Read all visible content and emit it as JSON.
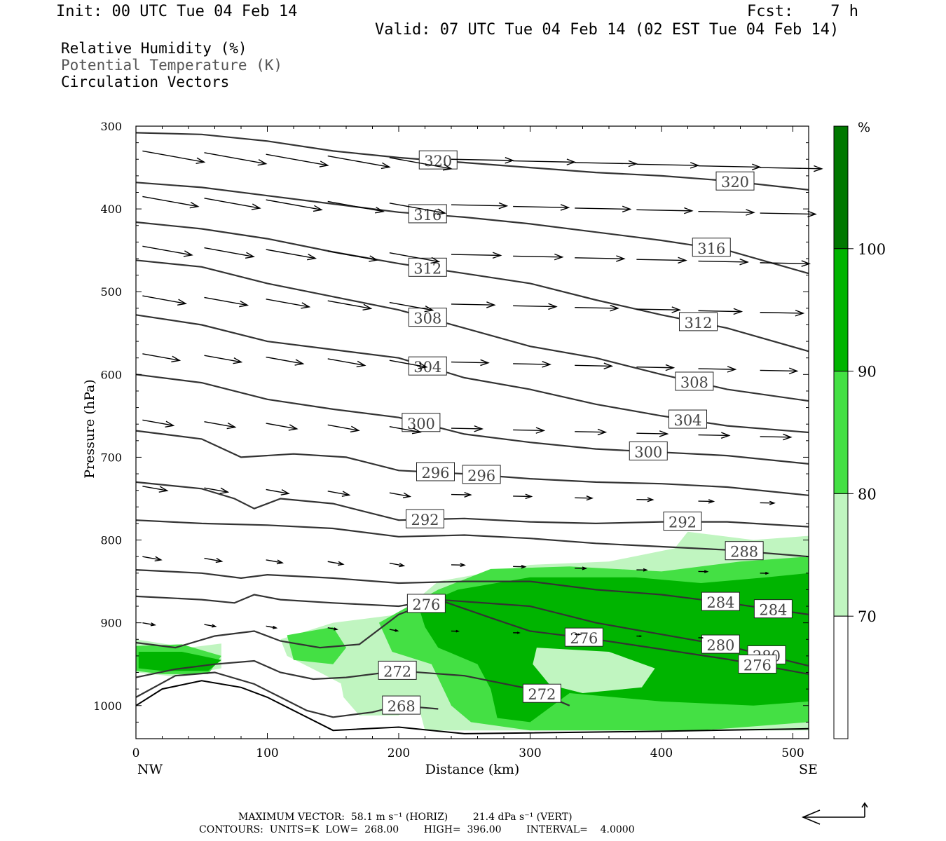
{
  "header": {
    "init": "Init: 00 UTC Tue 04 Feb 14",
    "fcst": "Fcst:    7 h",
    "valid": "Valid: 07 UTC Tue 04 Feb 14 (02 EST Tue 04 Feb 14)"
  },
  "legend": {
    "line1": "Relative Humidity (%)",
    "line2": "Potential Temperature (K)",
    "line3": "Circulation Vectors"
  },
  "colorbar": {
    "unit": "%",
    "levels": [
      "70",
      "80",
      "90",
      "100"
    ],
    "colors": [
      "#ffffff",
      "#c0f5c0",
      "#44e044",
      "#00b400",
      "#007800"
    ]
  },
  "footer": {
    "max_vector_line": "MAXIMUM VECTOR:  58.1 m s⁻¹ (HORIZ)        21.4 dPa s⁻¹ (VERT)",
    "contours_line": "CONTOURS:  UNITS=K  LOW=  268.00        HIGH=  396.00        INTERVAL=    4.0000"
  },
  "chart_data": {
    "type": "cross-section",
    "ylabel": "Pressure (hPa)",
    "xlabel": "Distance (km)",
    "x_end_labels": [
      "NW",
      "SE"
    ],
    "xlim": [
      0,
      512
    ],
    "ylim": [
      1040,
      300
    ],
    "x_ticks": [
      "0",
      "100",
      "200",
      "300",
      "400",
      "500"
    ],
    "y_ticks": [
      "300",
      "400",
      "500",
      "600",
      "700",
      "800",
      "900",
      "1000"
    ],
    "theta_contours": [
      {
        "level": 320,
        "points": [
          [
            0,
            308
          ],
          [
            50,
            310
          ],
          [
            100,
            318
          ],
          [
            150,
            330
          ],
          [
            200,
            338
          ],
          [
            250,
            344
          ],
          [
            300,
            350
          ],
          [
            350,
            356
          ],
          [
            400,
            360
          ],
          [
            450,
            366
          ],
          [
            512,
            377
          ]
        ]
      },
      {
        "level": 316,
        "points": [
          [
            0,
            368
          ],
          [
            50,
            374
          ],
          [
            100,
            384
          ],
          [
            150,
            394
          ],
          [
            200,
            404
          ],
          [
            250,
            410
          ],
          [
            300,
            418
          ],
          [
            350,
            428
          ],
          [
            400,
            438
          ],
          [
            450,
            450
          ],
          [
            512,
            478
          ]
        ]
      },
      {
        "level": 312,
        "points": [
          [
            0,
            416
          ],
          [
            50,
            424
          ],
          [
            100,
            436
          ],
          [
            150,
            452
          ],
          [
            200,
            466
          ],
          [
            250,
            478
          ],
          [
            300,
            490
          ],
          [
            350,
            510
          ],
          [
            400,
            528
          ],
          [
            450,
            544
          ],
          [
            512,
            572
          ]
        ]
      },
      {
        "level": 308,
        "points": [
          [
            0,
            462
          ],
          [
            50,
            470
          ],
          [
            100,
            490
          ],
          [
            150,
            506
          ],
          [
            200,
            522
          ],
          [
            250,
            544
          ],
          [
            300,
            566
          ],
          [
            350,
            580
          ],
          [
            400,
            600
          ],
          [
            450,
            618
          ],
          [
            512,
            632
          ]
        ]
      },
      {
        "level": 304,
        "points": [
          [
            0,
            528
          ],
          [
            50,
            540
          ],
          [
            100,
            560
          ],
          [
            150,
            570
          ],
          [
            200,
            580
          ],
          [
            250,
            604
          ],
          [
            300,
            618
          ],
          [
            350,
            636
          ],
          [
            400,
            650
          ],
          [
            450,
            662
          ],
          [
            512,
            670
          ]
        ]
      },
      {
        "level": 300,
        "points": [
          [
            0,
            600
          ],
          [
            50,
            610
          ],
          [
            100,
            630
          ],
          [
            150,
            642
          ],
          [
            200,
            652
          ],
          [
            250,
            672
          ],
          [
            300,
            682
          ],
          [
            350,
            690
          ],
          [
            400,
            694
          ],
          [
            450,
            698
          ],
          [
            512,
            708
          ]
        ]
      },
      {
        "level": 296,
        "points": [
          [
            0,
            668
          ],
          [
            50,
            678
          ],
          [
            80,
            700
          ],
          [
            120,
            696
          ],
          [
            160,
            700
          ],
          [
            200,
            716
          ],
          [
            250,
            720
          ],
          [
            300,
            726
          ],
          [
            350,
            730
          ],
          [
            400,
            732
          ],
          [
            450,
            736
          ],
          [
            512,
            746
          ]
        ]
      },
      {
        "level": 292,
        "points": [
          [
            0,
            730
          ],
          [
            50,
            738
          ],
          [
            75,
            750
          ],
          [
            90,
            762
          ],
          [
            110,
            750
          ],
          [
            150,
            756
          ],
          [
            200,
            776
          ],
          [
            250,
            774
          ],
          [
            300,
            778
          ],
          [
            350,
            780
          ],
          [
            400,
            778
          ],
          [
            450,
            778
          ],
          [
            512,
            784
          ]
        ]
      },
      {
        "level": 288,
        "points": [
          [
            0,
            776
          ],
          [
            50,
            780
          ],
          [
            100,
            782
          ],
          [
            150,
            786
          ],
          [
            200,
            796
          ],
          [
            250,
            794
          ],
          [
            300,
            798
          ],
          [
            350,
            804
          ],
          [
            400,
            808
          ],
          [
            450,
            812
          ],
          [
            512,
            820
          ]
        ]
      },
      {
        "level": 284,
        "points": [
          [
            0,
            836
          ],
          [
            50,
            840
          ],
          [
            80,
            846
          ],
          [
            100,
            842
          ],
          [
            150,
            846
          ],
          [
            200,
            852
          ],
          [
            250,
            850
          ],
          [
            300,
            850
          ],
          [
            350,
            860
          ],
          [
            400,
            866
          ],
          [
            450,
            876
          ],
          [
            512,
            890
          ]
        ]
      },
      {
        "level": 280,
        "points": [
          [
            0,
            868
          ],
          [
            50,
            872
          ],
          [
            75,
            876
          ],
          [
            90,
            866
          ],
          [
            110,
            872
          ],
          [
            150,
            876
          ],
          [
            200,
            880
          ],
          [
            230,
            872
          ],
          [
            300,
            880
          ],
          [
            350,
            900
          ],
          [
            400,
            914
          ],
          [
            450,
            928
          ],
          [
            512,
            952
          ]
        ]
      },
      {
        "level": 276,
        "points": [
          [
            0,
            924
          ],
          [
            30,
            930
          ],
          [
            60,
            916
          ],
          [
            90,
            910
          ],
          [
            110,
            922
          ],
          [
            140,
            930
          ],
          [
            170,
            926
          ],
          [
            200,
            890
          ],
          [
            230,
            872
          ],
          [
            270,
            894
          ],
          [
            300,
            910
          ],
          [
            350,
            920
          ],
          [
            400,
            932
          ],
          [
            450,
            944
          ],
          [
            512,
            962
          ]
        ]
      },
      {
        "level": 272,
        "points": [
          [
            0,
            966
          ],
          [
            30,
            956
          ],
          [
            60,
            950
          ],
          [
            90,
            946
          ],
          [
            110,
            960
          ],
          [
            135,
            968
          ],
          [
            160,
            966
          ],
          [
            200,
            958
          ],
          [
            250,
            964
          ],
          [
            300,
            980
          ],
          [
            330,
            1000
          ]
        ]
      },
      {
        "level": 268,
        "points": [
          [
            0,
            990
          ],
          [
            30,
            964
          ],
          [
            60,
            960
          ],
          [
            90,
            974
          ],
          [
            110,
            990
          ],
          [
            130,
            1006
          ],
          [
            150,
            1014
          ],
          [
            180,
            1008
          ],
          [
            200,
            1000
          ],
          [
            230,
            1004
          ]
        ]
      }
    ],
    "terrain_pressure": [
      [
        0,
        1000
      ],
      [
        20,
        980
      ],
      [
        50,
        970
      ],
      [
        80,
        978
      ],
      [
        100,
        990
      ],
      [
        120,
        1006
      ],
      [
        150,
        1030
      ],
      [
        200,
        1026
      ],
      [
        250,
        1034
      ],
      [
        300,
        1033
      ],
      [
        400,
        1031
      ],
      [
        512,
        1028
      ]
    ],
    "max_vector": {
      "horizontal": 58.1,
      "vertical": 21.4
    }
  }
}
